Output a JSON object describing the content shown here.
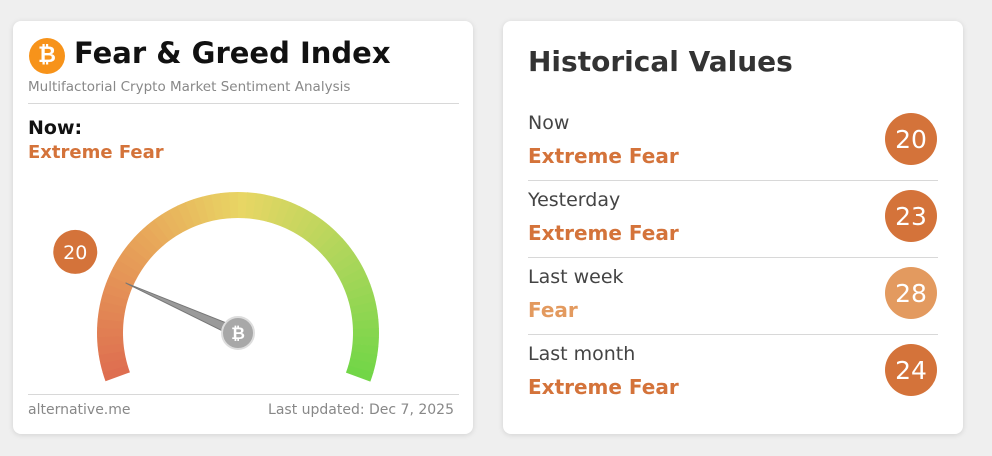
{
  "index_card": {
    "title": "Fear & Greed Index",
    "subtitle": "Multifactorial Crypto Market Sentiment Analysis",
    "now_label": "Now:",
    "now_classification": "Extreme Fear",
    "gauge": {
      "value": 20,
      "scale": [
        0,
        100
      ],
      "color": "#d4733a"
    },
    "source": "alternative.me",
    "last_updated": "Last updated: Dec 7, 2025"
  },
  "historical": {
    "title": "Historical Values",
    "rows": [
      {
        "label": "Now",
        "classification": "Extreme Fear",
        "value": 20,
        "color": "#d4733a"
      },
      {
        "label": "Yesterday",
        "classification": "Extreme Fear",
        "value": 23,
        "color": "#d4733a"
      },
      {
        "label": "Last week",
        "classification": "Fear",
        "value": 28,
        "color": "#e39a5f"
      },
      {
        "label": "Last month",
        "classification": "Extreme Fear",
        "value": 24,
        "color": "#d4733a"
      }
    ]
  }
}
